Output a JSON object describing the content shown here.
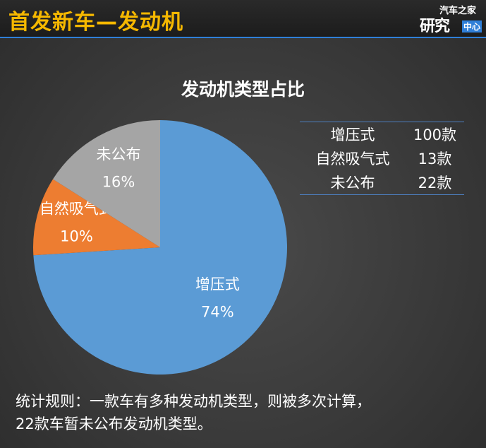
{
  "header": {
    "title": "首发新车—发动机",
    "logo": {
      "top": "汽车之家",
      "main": "研究",
      "sub": "中心"
    },
    "accent_color": "#f5b800"
  },
  "chart_data": {
    "type": "pie",
    "title": "发动机类型占比",
    "slices": [
      {
        "label": "增压式",
        "value": 74,
        "value_label": "74%",
        "color": "#5b9bd5"
      },
      {
        "label": "自然吸气式",
        "value": 10,
        "value_label": "10%",
        "color": "#ed7d31"
      },
      {
        "label": "未公布",
        "value": 16,
        "value_label": "16%",
        "color": "#a5a5a5"
      }
    ]
  },
  "legend_table": [
    {
      "name": "增压式",
      "count": "100款"
    },
    {
      "name": "自然吸气式",
      "count": "13款"
    },
    {
      "name": "未公布",
      "count": "22款"
    }
  ],
  "note": {
    "line1": "统计规则：一款车有多种发动机类型，则被多次计算，",
    "line2": "22款车暂未公布发动机类型。"
  }
}
